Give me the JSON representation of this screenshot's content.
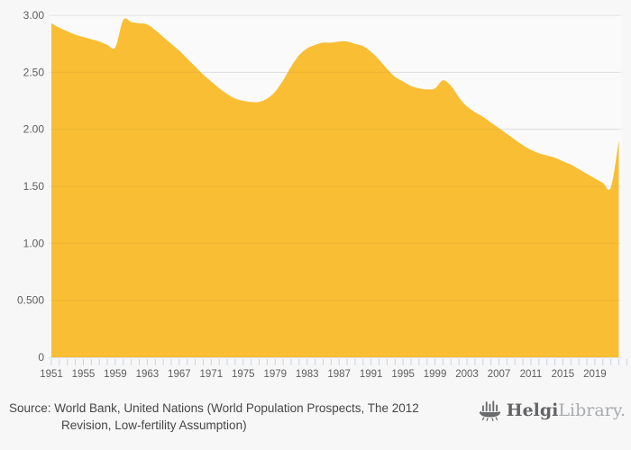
{
  "chart_data": {
    "type": "area",
    "title": "",
    "xlabel": "",
    "ylabel": "",
    "x_start_year": 1951,
    "x": [
      1951,
      1952,
      1953,
      1954,
      1955,
      1956,
      1957,
      1958,
      1959,
      1960,
      1961,
      1962,
      1963,
      1964,
      1965,
      1966,
      1967,
      1968,
      1969,
      1970,
      1971,
      1972,
      1973,
      1974,
      1975,
      1976,
      1977,
      1978,
      1979,
      1980,
      1981,
      1982,
      1983,
      1984,
      1985,
      1986,
      1987,
      1988,
      1989,
      1990,
      1991,
      1992,
      1993,
      1994,
      1995,
      1996,
      1997,
      1998,
      1999,
      2000,
      2001,
      2002,
      2003,
      2004,
      2005,
      2006,
      2007,
      2008,
      2009,
      2010,
      2011,
      2012,
      2013,
      2014,
      2015,
      2016,
      2017,
      2018,
      2019,
      2020,
      2021,
      2022
    ],
    "values": [
      2.93,
      2.89,
      2.86,
      2.83,
      2.81,
      2.79,
      2.77,
      2.74,
      2.72,
      2.96,
      2.94,
      2.93,
      2.92,
      2.87,
      2.81,
      2.75,
      2.69,
      2.62,
      2.55,
      2.48,
      2.42,
      2.36,
      2.31,
      2.27,
      2.25,
      2.24,
      2.24,
      2.27,
      2.33,
      2.43,
      2.55,
      2.65,
      2.71,
      2.74,
      2.76,
      2.76,
      2.77,
      2.77,
      2.75,
      2.73,
      2.68,
      2.61,
      2.53,
      2.46,
      2.42,
      2.38,
      2.36,
      2.35,
      2.36,
      2.43,
      2.38,
      2.28,
      2.2,
      2.15,
      2.11,
      2.06,
      2.01,
      1.96,
      1.91,
      1.86,
      1.82,
      1.79,
      1.77,
      1.75,
      1.72,
      1.69,
      1.65,
      1.61,
      1.57,
      1.53,
      1.49,
      1.9
    ],
    "ylim": [
      0,
      3.0
    ],
    "yticks": [
      0,
      0.5,
      1.0,
      1.5,
      2.0,
      2.5,
      3.0
    ],
    "ytick_labels": [
      "0",
      "0.500",
      "1.00",
      "1.50",
      "2.00",
      "2.50",
      "3.00"
    ],
    "xtick_every_years": 1,
    "xlabel_every_years": 4,
    "xtick_labels": [
      "1951",
      "1955",
      "1959",
      "1963",
      "1967",
      "1971",
      "1975",
      "1979",
      "1983",
      "1987",
      "1991",
      "1995",
      "1999",
      "2003",
      "2007",
      "2011",
      "2015",
      "2019"
    ],
    "grid": true,
    "legend": false,
    "area_color": "#f9be34",
    "gridline_color": "#e9e9e9",
    "grid_overlay_color": "rgba(0,0,0,0.05)",
    "axis_line_color": "#dde1ec",
    "tick_color": "#c9d2e4",
    "label_color": "#5e5e5e",
    "plot_bg": "#fafafa"
  },
  "footer": {
    "source_prefix": "Source:",
    "source_text": "World Bank, United Nations (World Population Prospects, The 2012 Revision, Low-fertility Assumption)",
    "logo": {
      "name_bold": "Helgi",
      "name_light": "Library."
    }
  }
}
